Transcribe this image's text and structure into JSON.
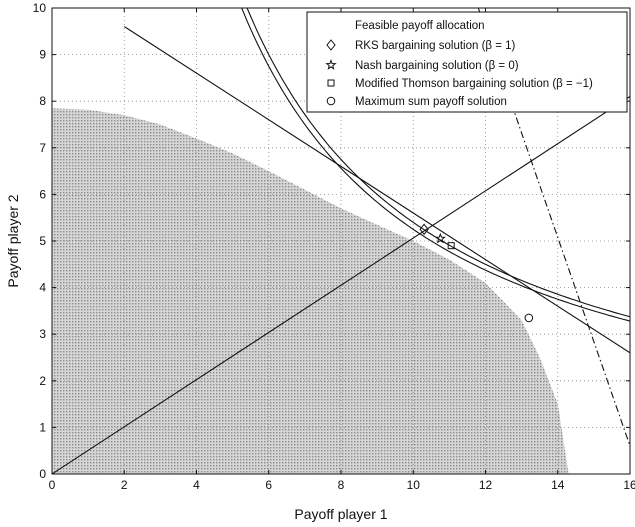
{
  "chart_data": {
    "type": "line",
    "title": "",
    "xlabel": "Payoff player 1",
    "ylabel": "Payoff player 2",
    "xlim": [
      0,
      16
    ],
    "ylim": [
      0,
      10
    ],
    "x_ticks": [
      0,
      2,
      4,
      6,
      8,
      10,
      12,
      14,
      16
    ],
    "y_ticks": [
      0,
      1,
      2,
      3,
      4,
      5,
      6,
      7,
      8,
      9,
      10
    ],
    "grid": true,
    "legend_position": "top-right",
    "feasible_region": {
      "label": "Feasible payoff allocation",
      "fill": "#bdbdbd",
      "boundary": [
        [
          0,
          7.85
        ],
        [
          1,
          7.82
        ],
        [
          2,
          7.7
        ],
        [
          3,
          7.5
        ],
        [
          4,
          7.2
        ],
        [
          5,
          6.88
        ],
        [
          6,
          6.5
        ],
        [
          7,
          6.1
        ],
        [
          8,
          5.7
        ],
        [
          9,
          5.35
        ],
        [
          10,
          5.0
        ],
        [
          11,
          4.6
        ],
        [
          12,
          4.1
        ],
        [
          13,
          3.3
        ],
        [
          13.5,
          2.5
        ],
        [
          14,
          1.5
        ],
        [
          14.3,
          0
        ]
      ]
    },
    "lines": [
      {
        "name": "",
        "style": "solid",
        "points": [
          [
            0,
            0
          ],
          [
            16,
            8.1
          ]
        ]
      },
      {
        "name": "",
        "style": "solid",
        "points": [
          [
            2,
            9.6
          ],
          [
            16,
            2.6
          ]
        ]
      },
      {
        "name": "",
        "style": "dashdot",
        "points": [
          [
            11.8,
            10
          ],
          [
            16,
            0.6
          ]
        ]
      }
    ],
    "curves": [
      {
        "name": "",
        "style": "solid",
        "k": 52.5,
        "x_range": [
          5.25,
          16
        ]
      },
      {
        "name": "",
        "style": "solid",
        "k": 54.0,
        "x_range": [
          5.4,
          16
        ]
      }
    ],
    "points": [
      {
        "label": "RKS bargaining solution (β = 1)",
        "marker": "diamond",
        "x": 10.3,
        "y": 5.25
      },
      {
        "label": "Nash bargaining solution (β = 0)",
        "marker": "star",
        "x": 10.75,
        "y": 5.05
      },
      {
        "label": "Modified Thomson bargaining solution (β = −1)",
        "marker": "square",
        "x": 11.05,
        "y": 4.9
      },
      {
        "label": "Maximum sum payoff solution",
        "marker": "circle",
        "x": 13.2,
        "y": 3.35
      }
    ],
    "colors": {
      "line": "#111111",
      "grid": "#888888",
      "region": "#bdbdbd"
    }
  }
}
